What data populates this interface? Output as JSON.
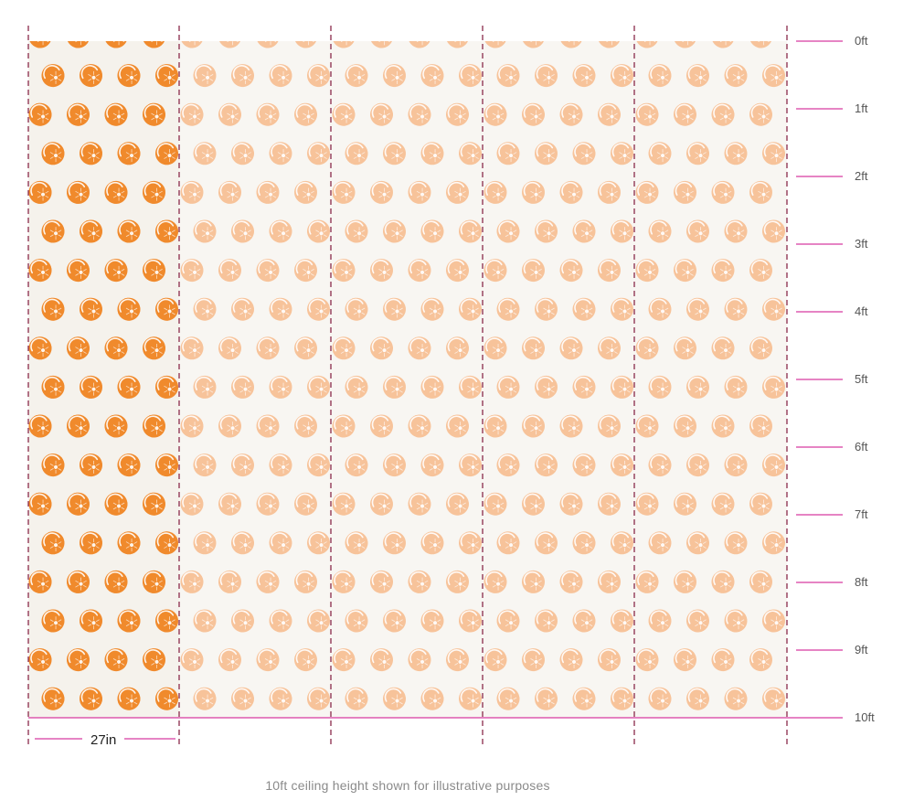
{
  "wallpaper": {
    "motif": "orange-slice-icon",
    "panel_count": 5,
    "highlighted_panel": 1,
    "background_color": "#f8f6f2",
    "highlight_color": "#f08a2c",
    "faded_color": "#f7c39a",
    "guide_color": "#8a2a4a",
    "ruler_color": "#d63aa0"
  },
  "ruler": {
    "labels": [
      "0ft",
      "1ft",
      "2ft",
      "3ft",
      "4ft",
      "5ft",
      "6ft",
      "7ft",
      "8ft",
      "9ft",
      "10ft"
    ]
  },
  "panel_width_label": "27in",
  "footnote": "10ft ceiling height shown for illustrative purposes"
}
